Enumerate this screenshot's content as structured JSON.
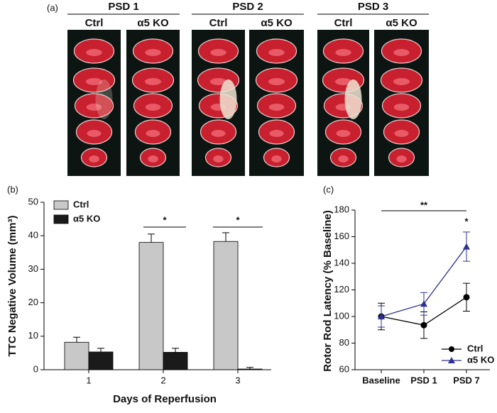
{
  "panel_a": {
    "label": "(a)",
    "groups": [
      {
        "title": "PSD 1",
        "columns": [
          "Ctrl",
          "α5 KO"
        ]
      },
      {
        "title": "PSD 2",
        "columns": [
          "Ctrl",
          "α5 KO"
        ]
      },
      {
        "title": "PSD 3",
        "columns": [
          "Ctrl",
          "α5 KO"
        ]
      }
    ]
  },
  "chart_data": [
    {
      "type": "bar",
      "label": "(b)",
      "xlabel": "Days of Reperfusion",
      "ylabel": "TTC Negative Volume (mm³)",
      "categories": [
        "1",
        "2",
        "3"
      ],
      "series": [
        {
          "name": "Ctrl",
          "color": "#c8c8c8",
          "values": [
            8.2,
            38,
            38.3
          ],
          "errors": [
            1.5,
            2.5,
            2.6
          ]
        },
        {
          "name": "α5 KO",
          "color": "#1a1a1a",
          "values": [
            5.3,
            5.2,
            0.2
          ],
          "errors": [
            1.1,
            1.2,
            0.5
          ]
        }
      ],
      "ylim": [
        0,
        50
      ],
      "yticks": [
        0,
        10,
        20,
        30,
        40,
        50
      ],
      "legend": "upper left",
      "annotations": [
        "*",
        "*"
      ]
    },
    {
      "type": "line",
      "label": "(c)",
      "ylabel": "Rotor Rod Latency (% Baseline)",
      "categories": [
        "Baseline",
        "PSD 1",
        "PSD 7"
      ],
      "series": [
        {
          "name": "Ctrl",
          "color": "#000000",
          "marker": "circle",
          "values": [
            100,
            93.5,
            114.5
          ],
          "errors": [
            10,
            10,
            10.5
          ]
        },
        {
          "name": "α5 KO",
          "color": "#2e3192",
          "marker": "triangle",
          "values": [
            100,
            109.5,
            152.5
          ],
          "errors": [
            8,
            8.5,
            11
          ]
        }
      ],
      "ylim": [
        60,
        180
      ],
      "yticks": [
        60,
        80,
        100,
        120,
        140,
        160,
        180
      ],
      "legend": "lower right",
      "annotations": [
        "**",
        "*"
      ]
    }
  ]
}
